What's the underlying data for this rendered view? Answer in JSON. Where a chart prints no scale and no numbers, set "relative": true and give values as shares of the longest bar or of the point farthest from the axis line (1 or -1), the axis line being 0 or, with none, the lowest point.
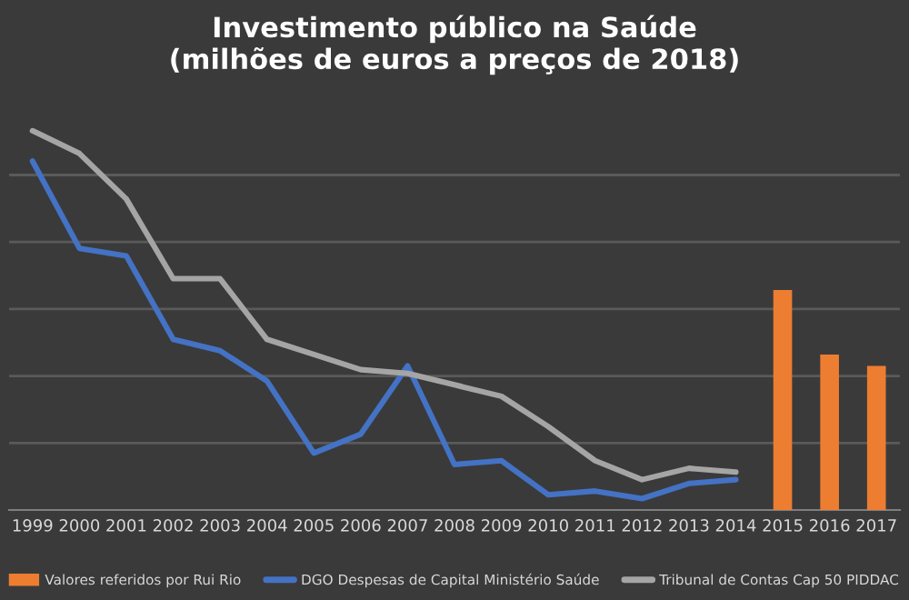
{
  "chart_data": {
    "type": "line",
    "title": "Investimento público na Saúde\n(milhões de euros a preços de 2018)",
    "categories": [
      "1999",
      "2000",
      "2001",
      "2002",
      "2003",
      "2004",
      "2005",
      "2006",
      "2007",
      "2008",
      "2009",
      "2010",
      "2011",
      "2012",
      "2013",
      "2014",
      "2015",
      "2016",
      "2017"
    ],
    "relative": true,
    "grid": "y",
    "legend": "bottom",
    "series": [
      {
        "name": "Valores referidos por Rui Rio",
        "type": "bar",
        "color": "#ed7d31",
        "values": [
          null,
          null,
          null,
          null,
          null,
          null,
          null,
          null,
          null,
          null,
          null,
          null,
          null,
          null,
          null,
          null,
          0.58,
          0.41,
          0.38
        ]
      },
      {
        "name": "DGO Despesas de Capital Ministério Saúde",
        "color": "#4472c4",
        "values": [
          0.92,
          0.69,
          0.67,
          0.45,
          0.42,
          0.34,
          0.15,
          0.2,
          0.38,
          0.12,
          0.13,
          0.04,
          0.05,
          0.03,
          0.07,
          0.08,
          null,
          null,
          null
        ]
      },
      {
        "name": "Tribunal de Contas Cap 50 PIDDAC",
        "color": "#a5a5a5",
        "values": [
          1.0,
          0.94,
          0.82,
          0.61,
          0.61,
          0.45,
          0.41,
          0.37,
          0.36,
          0.33,
          0.3,
          0.22,
          0.13,
          0.08,
          0.11,
          0.1,
          null,
          null,
          null
        ]
      }
    ]
  }
}
